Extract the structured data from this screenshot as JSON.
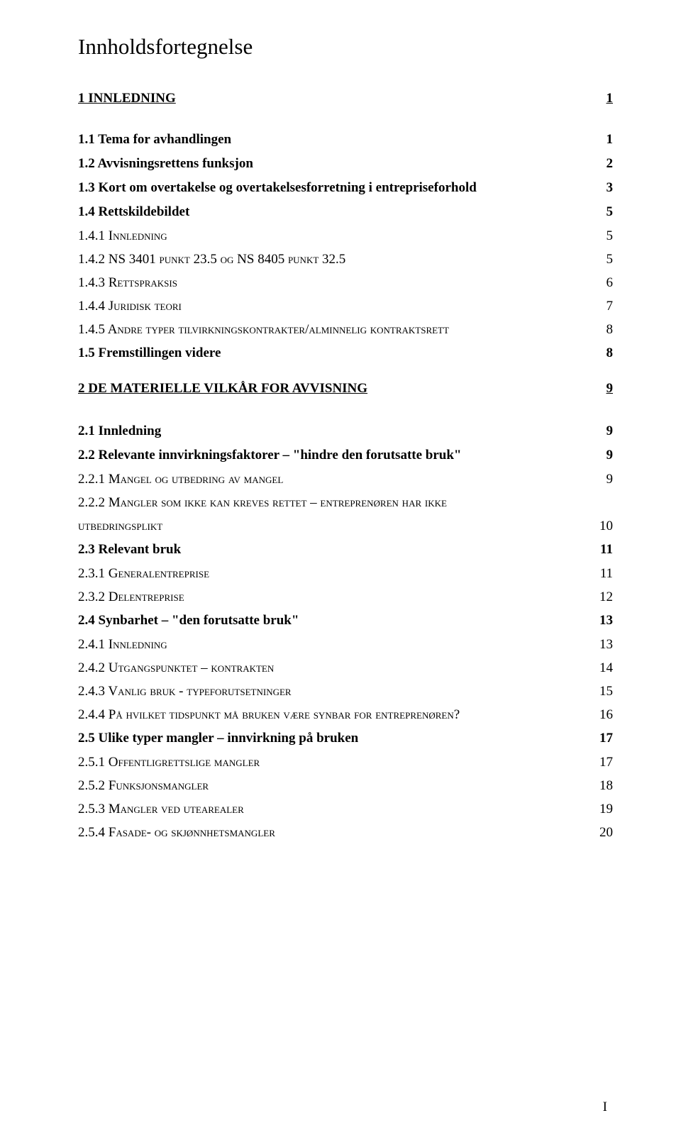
{
  "title": "Innholdsfortegnelse",
  "footer_label": "I",
  "toc": [
    {
      "cls": "section-head",
      "label": "1   INNLEDNING",
      "page": "1"
    },
    {
      "cls": "lvl-bold",
      "label": "1.1   Tema for avhandlingen",
      "page": "1"
    },
    {
      "cls": "lvl-bold",
      "label": "1.2   Avvisningsrettens funksjon",
      "page": "2"
    },
    {
      "cls": "lvl-bold",
      "label": "1.3   Kort om overtakelse og overtakelsesforretning i entrepriseforhold",
      "page": "3"
    },
    {
      "cls": "lvl-bold",
      "label": "1.4   Rettskildebildet",
      "page": "5"
    },
    {
      "cls": "lvl-sc",
      "label": "1.4.1   Innledning",
      "page": "5"
    },
    {
      "cls": "lvl-sc",
      "label": "1.4.2   NS 3401 punkt 23.5 og NS 8405 punkt 32.5",
      "page": "5"
    },
    {
      "cls": "lvl-sc",
      "label": "1.4.3   Rettspraksis",
      "page": "6"
    },
    {
      "cls": "lvl-sc",
      "label": "1.4.4   Juridisk teori",
      "page": "7"
    },
    {
      "cls": "lvl-sc",
      "label": "1.4.5   Andre typer tilvirkningskontrakter/alminnelig kontraktsrett",
      "page": "8"
    },
    {
      "cls": "lvl-bold gap-big",
      "label": "1.5   Fremstillingen videre",
      "page": "8"
    },
    {
      "cls": "section-head-2",
      "label": "2   DE MATERIELLE VILKÅR FOR AVVISNING",
      "page": "9"
    },
    {
      "cls": "lvl-bold",
      "label": "2.1   Innledning",
      "page": "9"
    },
    {
      "cls": "lvl-bold",
      "label": "2.2   Relevante innvirkningsfaktorer – \"hindre den forutsatte bruk\"",
      "page": "9"
    },
    {
      "cls": "lvl-sc",
      "label": "2.2.1   Mangel og utbedring av mangel",
      "page": "9"
    },
    {
      "cls": "lvl-sc",
      "label": "2.2.2   Mangler som ikke kan kreves rettet – entreprenøren har ikke",
      "page": ""
    },
    {
      "cls": "lvl-sc-cont",
      "label": "utbedringsplikt",
      "page": "10"
    },
    {
      "cls": "lvl-bold",
      "label": "2.3   Relevant bruk",
      "page": "11"
    },
    {
      "cls": "lvl-sc",
      "label": "2.3.1   Generalentreprise",
      "page": "11"
    },
    {
      "cls": "lvl-sc",
      "label": "2.3.2   Delentreprise",
      "page": "12"
    },
    {
      "cls": "lvl-bold",
      "label": "2.4   Synbarhet – \"den forutsatte bruk\"",
      "page": "13"
    },
    {
      "cls": "lvl-sc",
      "label": "2.4.1   Innledning",
      "page": "13"
    },
    {
      "cls": "lvl-sc",
      "label": "2.4.2   Utgangspunktet – kontrakten",
      "page": "14"
    },
    {
      "cls": "lvl-sc",
      "label": "2.4.3   Vanlig bruk - typeforutsetninger",
      "page": "15"
    },
    {
      "cls": "lvl-sc",
      "label": "2.4.4   På hvilket tidspunkt må bruken være synbar for entreprenøren?",
      "page": "16"
    },
    {
      "cls": "lvl-bold",
      "label": "2.5   Ulike typer mangler – innvirkning på bruken",
      "page": "17"
    },
    {
      "cls": "lvl-sc",
      "label": "2.5.1   Offentligrettslige mangler",
      "page": "17"
    },
    {
      "cls": "lvl-sc",
      "label": "2.5.2   Funksjonsmangler",
      "page": "18"
    },
    {
      "cls": "lvl-sc",
      "label": "2.5.3   Mangler ved utearealer",
      "page": "19"
    },
    {
      "cls": "lvl-sc",
      "label": "2.5.4   Fasade- og skjønnhetsmangler",
      "page": "20"
    }
  ]
}
